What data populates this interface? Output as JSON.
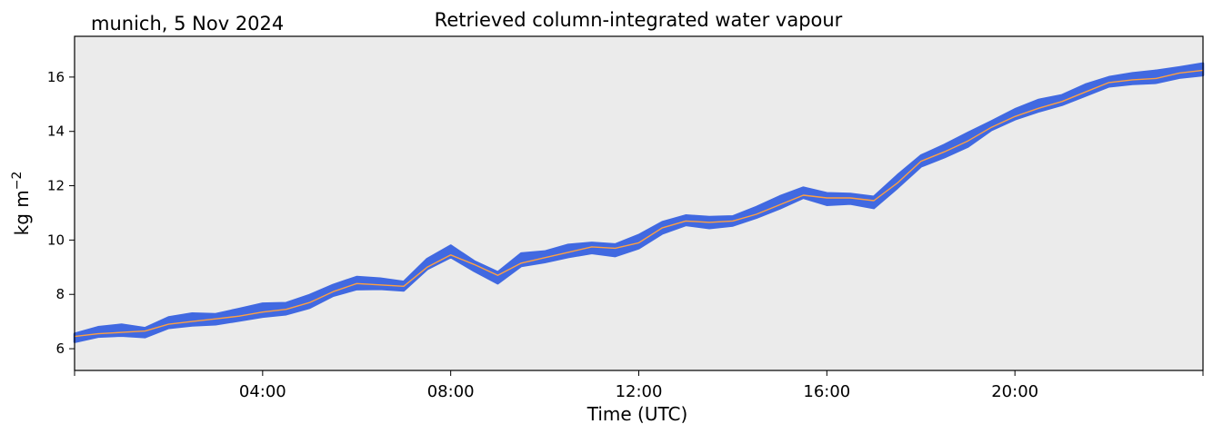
{
  "chart_data": {
    "type": "line",
    "location_date": "munich, 5 Nov 2024",
    "title": "Retrieved column-integrated water vapour",
    "xlabel": "Time (UTC)",
    "ylabel_base": "kg m",
    "ylabel_exp": "−2",
    "x_unit": "hours since 00:00 UTC",
    "xlim": [
      0,
      24
    ],
    "ylim": [
      5.2,
      17.5
    ],
    "x_ticks": [
      {
        "value": 0,
        "label": ""
      },
      {
        "value": 4,
        "label": "04:00"
      },
      {
        "value": 8,
        "label": "08:00"
      },
      {
        "value": 12,
        "label": "12:00"
      },
      {
        "value": 16,
        "label": "16:00"
      },
      {
        "value": 20,
        "label": "20:00"
      },
      {
        "value": 24,
        "label": ""
      }
    ],
    "y_ticks": [
      6,
      8,
      10,
      12,
      14,
      16
    ],
    "background_color": "#ebebeb",
    "series": [
      {
        "style": "band",
        "color": "#4169e1",
        "x": [
          0.0,
          0.5,
          1.0,
          1.5,
          2.0,
          2.5,
          3.0,
          3.5,
          4.0,
          4.5,
          5.0,
          5.5,
          6.0,
          6.5,
          7.0,
          7.5,
          8.0,
          8.5,
          9.0,
          9.5,
          10.0,
          10.5,
          11.0,
          11.5,
          12.0,
          12.5,
          13.0,
          13.5,
          14.0,
          14.5,
          15.0,
          15.5,
          16.0,
          16.5,
          17.0,
          17.5,
          18.0,
          18.5,
          19.0,
          19.5,
          20.0,
          20.5,
          21.0,
          21.5,
          22.0,
          22.5,
          23.0,
          23.5,
          24.0
        ],
        "values": [
          6.4,
          6.6,
          6.65,
          6.6,
          6.95,
          7.05,
          7.1,
          7.25,
          7.4,
          7.5,
          7.75,
          8.2,
          8.45,
          8.35,
          8.3,
          9.1,
          9.55,
          9.05,
          8.6,
          9.25,
          9.4,
          9.6,
          9.75,
          9.65,
          9.95,
          10.5,
          10.7,
          10.6,
          10.7,
          11.0,
          11.35,
          11.75,
          11.5,
          11.55,
          11.4,
          12.15,
          12.95,
          13.3,
          13.7,
          14.2,
          14.6,
          14.9,
          15.15,
          15.5,
          15.85,
          15.95,
          16.0,
          16.2,
          16.3
        ],
        "band_half_width": 0.15
      },
      {
        "style": "line",
        "color": "#ffa040",
        "x": [
          0.0,
          0.5,
          1.0,
          1.5,
          2.0,
          2.5,
          3.0,
          3.5,
          4.0,
          4.5,
          5.0,
          5.5,
          6.0,
          6.5,
          7.0,
          7.5,
          8.0,
          8.5,
          9.0,
          9.5,
          10.0,
          10.5,
          11.0,
          11.5,
          12.0,
          12.5,
          13.0,
          13.5,
          14.0,
          14.5,
          15.0,
          15.5,
          16.0,
          16.5,
          17.0,
          17.5,
          18.0,
          18.5,
          19.0,
          19.5,
          20.0,
          20.5,
          21.0,
          21.5,
          22.0,
          22.5,
          23.0,
          23.5,
          24.0
        ],
        "values": [
          6.45,
          6.55,
          6.6,
          6.65,
          6.9,
          7.0,
          7.1,
          7.2,
          7.35,
          7.45,
          7.7,
          8.1,
          8.4,
          8.35,
          8.3,
          9.0,
          9.45,
          9.1,
          8.7,
          9.15,
          9.35,
          9.55,
          9.75,
          9.7,
          9.9,
          10.45,
          10.7,
          10.65,
          10.7,
          10.95,
          11.3,
          11.65,
          11.55,
          11.55,
          11.45,
          12.1,
          12.9,
          13.25,
          13.65,
          14.15,
          14.55,
          14.85,
          15.1,
          15.45,
          15.8,
          15.9,
          15.95,
          16.15,
          16.25
        ]
      }
    ],
    "grid": false,
    "legend": "none"
  }
}
